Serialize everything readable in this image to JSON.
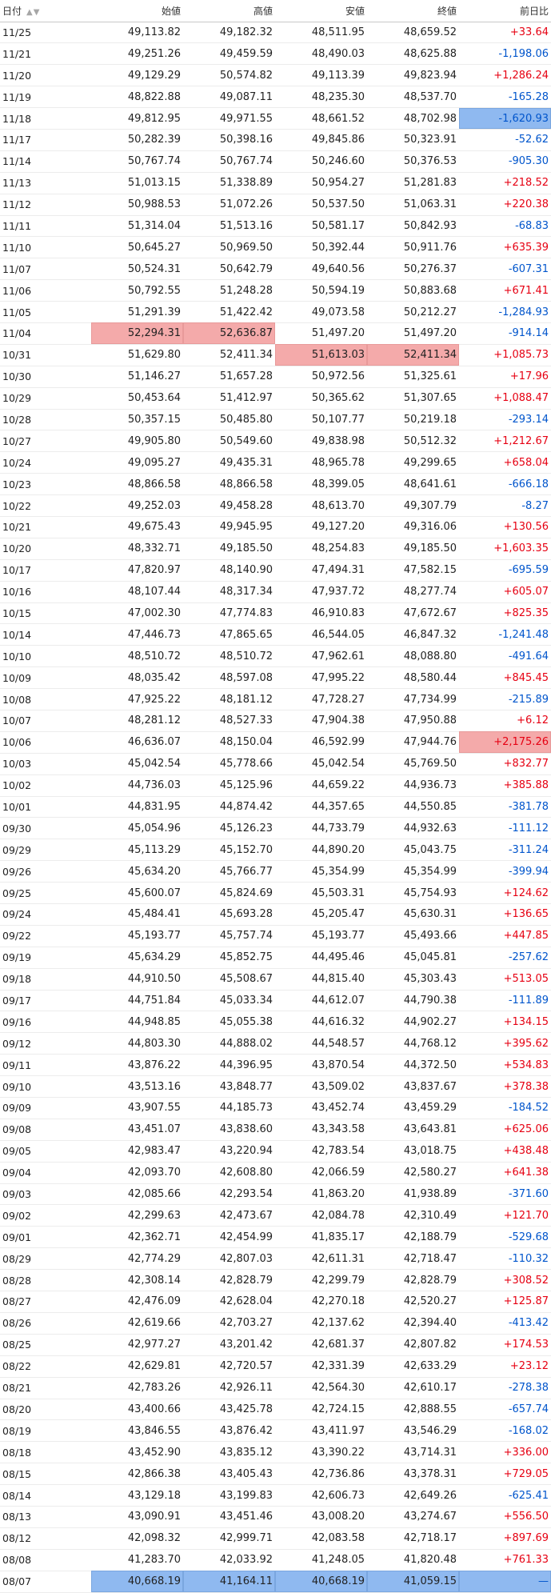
{
  "header": {
    "date": "日付",
    "open": "始値",
    "high": "高値",
    "low": "安値",
    "close": "終値",
    "change": "前日比"
  },
  "rows": [
    {
      "date": "11/25",
      "open": "49,113.82",
      "high": "49,182.32",
      "low": "48,511.95",
      "close": "48,659.52",
      "change": "+33.64"
    },
    {
      "date": "11/21",
      "open": "49,251.26",
      "high": "49,459.59",
      "low": "48,490.03",
      "close": "48,625.88",
      "change": "-1,198.06"
    },
    {
      "date": "11/20",
      "open": "49,129.29",
      "high": "50,574.82",
      "low": "49,113.39",
      "close": "49,823.94",
      "change": "+1,286.24"
    },
    {
      "date": "11/19",
      "open": "48,822.88",
      "high": "49,087.11",
      "low": "48,235.30",
      "close": "48,537.70",
      "change": "-165.28"
    },
    {
      "date": "11/18",
      "open": "49,812.95",
      "high": "49,971.55",
      "low": "48,661.52",
      "close": "48,702.98",
      "change": "-1,620.93"
    },
    {
      "date": "11/17",
      "open": "50,282.39",
      "high": "50,398.16",
      "low": "49,845.86",
      "close": "50,323.91",
      "change": "-52.62"
    },
    {
      "date": "11/14",
      "open": "50,767.74",
      "high": "50,767.74",
      "low": "50,246.60",
      "close": "50,376.53",
      "change": "-905.30"
    },
    {
      "date": "11/13",
      "open": "51,013.15",
      "high": "51,338.89",
      "low": "50,954.27",
      "close": "51,281.83",
      "change": "+218.52"
    },
    {
      "date": "11/12",
      "open": "50,988.53",
      "high": "51,072.26",
      "low": "50,537.50",
      "close": "51,063.31",
      "change": "+220.38"
    },
    {
      "date": "11/11",
      "open": "51,314.04",
      "high": "51,513.16",
      "low": "50,581.17",
      "close": "50,842.93",
      "change": "-68.83"
    },
    {
      "date": "11/10",
      "open": "50,645.27",
      "high": "50,969.50",
      "low": "50,392.44",
      "close": "50,911.76",
      "change": "+635.39"
    },
    {
      "date": "11/07",
      "open": "50,524.31",
      "high": "50,642.79",
      "low": "49,640.56",
      "close": "50,276.37",
      "change": "-607.31"
    },
    {
      "date": "11/06",
      "open": "50,792.55",
      "high": "51,248.28",
      "low": "50,594.19",
      "close": "50,883.68",
      "change": "+671.41"
    },
    {
      "date": "11/05",
      "open": "51,291.39",
      "high": "51,422.42",
      "low": "49,073.58",
      "close": "50,212.27",
      "change": "-1,284.93"
    },
    {
      "date": "11/04",
      "open": "52,294.31",
      "high": "52,636.87",
      "low": "51,497.20",
      "close": "51,497.20",
      "change": "-914.14"
    },
    {
      "date": "10/31",
      "open": "51,629.80",
      "high": "52,411.34",
      "low": "51,613.03",
      "close": "52,411.34",
      "change": "+1,085.73"
    },
    {
      "date": "10/30",
      "open": "51,146.27",
      "high": "51,657.28",
      "low": "50,972.56",
      "close": "51,325.61",
      "change": "+17.96"
    },
    {
      "date": "10/29",
      "open": "50,453.64",
      "high": "51,412.97",
      "low": "50,365.62",
      "close": "51,307.65",
      "change": "+1,088.47"
    },
    {
      "date": "10/28",
      "open": "50,357.15",
      "high": "50,485.80",
      "low": "50,107.77",
      "close": "50,219.18",
      "change": "-293.14"
    },
    {
      "date": "10/27",
      "open": "49,905.80",
      "high": "50,549.60",
      "low": "49,838.98",
      "close": "50,512.32",
      "change": "+1,212.67"
    },
    {
      "date": "10/24",
      "open": "49,095.27",
      "high": "49,435.31",
      "low": "48,965.78",
      "close": "49,299.65",
      "change": "+658.04"
    },
    {
      "date": "10/23",
      "open": "48,866.58",
      "high": "48,866.58",
      "low": "48,399.05",
      "close": "48,641.61",
      "change": "-666.18"
    },
    {
      "date": "10/22",
      "open": "49,252.03",
      "high": "49,458.28",
      "low": "48,613.70",
      "close": "49,307.79",
      "change": "-8.27"
    },
    {
      "date": "10/21",
      "open": "49,675.43",
      "high": "49,945.95",
      "low": "49,127.20",
      "close": "49,316.06",
      "change": "+130.56"
    },
    {
      "date": "10/20",
      "open": "48,332.71",
      "high": "49,185.50",
      "low": "48,254.83",
      "close": "49,185.50",
      "change": "+1,603.35"
    },
    {
      "date": "10/17",
      "open": "47,820.97",
      "high": "48,140.90",
      "low": "47,494.31",
      "close": "47,582.15",
      "change": "-695.59"
    },
    {
      "date": "10/16",
      "open": "48,107.44",
      "high": "48,317.34",
      "low": "47,937.72",
      "close": "48,277.74",
      "change": "+605.07"
    },
    {
      "date": "10/15",
      "open": "47,002.30",
      "high": "47,774.83",
      "low": "46,910.83",
      "close": "47,672.67",
      "change": "+825.35"
    },
    {
      "date": "10/14",
      "open": "47,446.73",
      "high": "47,865.65",
      "low": "46,544.05",
      "close": "46,847.32",
      "change": "-1,241.48"
    },
    {
      "date": "10/10",
      "open": "48,510.72",
      "high": "48,510.72",
      "low": "47,962.61",
      "close": "48,088.80",
      "change": "-491.64"
    },
    {
      "date": "10/09",
      "open": "48,035.42",
      "high": "48,597.08",
      "low": "47,995.22",
      "close": "48,580.44",
      "change": "+845.45"
    },
    {
      "date": "10/08",
      "open": "47,925.22",
      "high": "48,181.12",
      "low": "47,728.27",
      "close": "47,734.99",
      "change": "-215.89"
    },
    {
      "date": "10/07",
      "open": "48,281.12",
      "high": "48,527.33",
      "low": "47,904.38",
      "close": "47,950.88",
      "change": "+6.12"
    },
    {
      "date": "10/06",
      "open": "46,636.07",
      "high": "48,150.04",
      "low": "46,592.99",
      "close": "47,944.76",
      "change": "+2,175.26"
    },
    {
      "date": "10/03",
      "open": "45,042.54",
      "high": "45,778.66",
      "low": "45,042.54",
      "close": "45,769.50",
      "change": "+832.77"
    },
    {
      "date": "10/02",
      "open": "44,736.03",
      "high": "45,125.96",
      "low": "44,659.22",
      "close": "44,936.73",
      "change": "+385.88"
    },
    {
      "date": "10/01",
      "open": "44,831.95",
      "high": "44,874.42",
      "low": "44,357.65",
      "close": "44,550.85",
      "change": "-381.78"
    },
    {
      "date": "09/30",
      "open": "45,054.96",
      "high": "45,126.23",
      "low": "44,733.79",
      "close": "44,932.63",
      "change": "-111.12"
    },
    {
      "date": "09/29",
      "open": "45,113.29",
      "high": "45,152.70",
      "low": "44,890.20",
      "close": "45,043.75",
      "change": "-311.24"
    },
    {
      "date": "09/26",
      "open": "45,634.20",
      "high": "45,766.77",
      "low": "45,354.99",
      "close": "45,354.99",
      "change": "-399.94"
    },
    {
      "date": "09/25",
      "open": "45,600.07",
      "high": "45,824.69",
      "low": "45,503.31",
      "close": "45,754.93",
      "change": "+124.62"
    },
    {
      "date": "09/24",
      "open": "45,484.41",
      "high": "45,693.28",
      "low": "45,205.47",
      "close": "45,630.31",
      "change": "+136.65"
    },
    {
      "date": "09/22",
      "open": "45,193.77",
      "high": "45,757.74",
      "low": "45,193.77",
      "close": "45,493.66",
      "change": "+447.85"
    },
    {
      "date": "09/19",
      "open": "45,634.29",
      "high": "45,852.75",
      "low": "44,495.46",
      "close": "45,045.81",
      "change": "-257.62"
    },
    {
      "date": "09/18",
      "open": "44,910.50",
      "high": "45,508.67",
      "low": "44,815.40",
      "close": "45,303.43",
      "change": "+513.05"
    },
    {
      "date": "09/17",
      "open": "44,751.84",
      "high": "45,033.34",
      "low": "44,612.07",
      "close": "44,790.38",
      "change": "-111.89"
    },
    {
      "date": "09/16",
      "open": "44,948.85",
      "high": "45,055.38",
      "low": "44,616.32",
      "close": "44,902.27",
      "change": "+134.15"
    },
    {
      "date": "09/12",
      "open": "44,803.30",
      "high": "44,888.02",
      "low": "44,548.57",
      "close": "44,768.12",
      "change": "+395.62"
    },
    {
      "date": "09/11",
      "open": "43,876.22",
      "high": "44,396.95",
      "low": "43,870.54",
      "close": "44,372.50",
      "change": "+534.83"
    },
    {
      "date": "09/10",
      "open": "43,513.16",
      "high": "43,848.77",
      "low": "43,509.02",
      "close": "43,837.67",
      "change": "+378.38"
    },
    {
      "date": "09/09",
      "open": "43,907.55",
      "high": "44,185.73",
      "low": "43,452.74",
      "close": "43,459.29",
      "change": "-184.52"
    },
    {
      "date": "09/08",
      "open": "43,451.07",
      "high": "43,838.60",
      "low": "43,343.58",
      "close": "43,643.81",
      "change": "+625.06"
    },
    {
      "date": "09/05",
      "open": "42,983.47",
      "high": "43,220.94",
      "low": "42,783.54",
      "close": "43,018.75",
      "change": "+438.48"
    },
    {
      "date": "09/04",
      "open": "42,093.70",
      "high": "42,608.80",
      "low": "42,066.59",
      "close": "42,580.27",
      "change": "+641.38"
    },
    {
      "date": "09/03",
      "open": "42,085.66",
      "high": "42,293.54",
      "low": "41,863.20",
      "close": "41,938.89",
      "change": "-371.60"
    },
    {
      "date": "09/02",
      "open": "42,299.63",
      "high": "42,473.67",
      "low": "42,084.78",
      "close": "42,310.49",
      "change": "+121.70"
    },
    {
      "date": "09/01",
      "open": "42,362.71",
      "high": "42,454.99",
      "low": "41,835.17",
      "close": "42,188.79",
      "change": "-529.68"
    },
    {
      "date": "08/29",
      "open": "42,774.29",
      "high": "42,807.03",
      "low": "42,611.31",
      "close": "42,718.47",
      "change": "-110.32"
    },
    {
      "date": "08/28",
      "open": "42,308.14",
      "high": "42,828.79",
      "low": "42,299.79",
      "close": "42,828.79",
      "change": "+308.52"
    },
    {
      "date": "08/27",
      "open": "42,476.09",
      "high": "42,628.04",
      "low": "42,270.18",
      "close": "42,520.27",
      "change": "+125.87"
    },
    {
      "date": "08/26",
      "open": "42,619.66",
      "high": "42,703.27",
      "low": "42,137.62",
      "close": "42,394.40",
      "change": "-413.42"
    },
    {
      "date": "08/25",
      "open": "42,977.27",
      "high": "43,201.42",
      "low": "42,681.37",
      "close": "42,807.82",
      "change": "+174.53"
    },
    {
      "date": "08/22",
      "open": "42,629.81",
      "high": "42,720.57",
      "low": "42,331.39",
      "close": "42,633.29",
      "change": "+23.12"
    },
    {
      "date": "08/21",
      "open": "42,783.26",
      "high": "42,926.11",
      "low": "42,564.30",
      "close": "42,610.17",
      "change": "-278.38"
    },
    {
      "date": "08/20",
      "open": "43,400.66",
      "high": "43,425.78",
      "low": "42,724.15",
      "close": "42,888.55",
      "change": "-657.74"
    },
    {
      "date": "08/19",
      "open": "43,846.55",
      "high": "43,876.42",
      "low": "43,411.97",
      "close": "43,546.29",
      "change": "-168.02"
    },
    {
      "date": "08/18",
      "open": "43,452.90",
      "high": "43,835.12",
      "low": "43,390.22",
      "close": "43,714.31",
      "change": "+336.00"
    },
    {
      "date": "08/15",
      "open": "42,866.38",
      "high": "43,405.43",
      "low": "42,736.86",
      "close": "43,378.31",
      "change": "+729.05"
    },
    {
      "date": "08/14",
      "open": "43,129.18",
      "high": "43,199.83",
      "low": "42,606.73",
      "close": "42,649.26",
      "change": "-625.41"
    },
    {
      "date": "08/13",
      "open": "43,090.91",
      "high": "43,451.46",
      "low": "43,008.20",
      "close": "43,274.67",
      "change": "+556.50"
    },
    {
      "date": "08/12",
      "open": "42,098.32",
      "high": "42,999.71",
      "low": "42,083.58",
      "close": "42,718.17",
      "change": "+897.69"
    },
    {
      "date": "08/08",
      "open": "41,283.70",
      "high": "42,033.92",
      "low": "41,248.05",
      "close": "41,820.48",
      "change": "+761.33"
    },
    {
      "date": "08/07",
      "open": "40,668.19",
      "high": "41,164.11",
      "low": "40,668.19",
      "close": "41,059.15",
      "change": "—"
    }
  ],
  "highlights": {
    "11/18": {
      "change": "lo"
    },
    "11/04": {
      "open": "hi",
      "high": "hi"
    },
    "10/31": {
      "low": "hi",
      "close": "hi"
    },
    "10/06": {
      "change": "hi"
    },
    "08/07": {
      "open": "lo",
      "high": "lo",
      "low": "lo",
      "close": "lo",
      "change": "lo"
    }
  }
}
